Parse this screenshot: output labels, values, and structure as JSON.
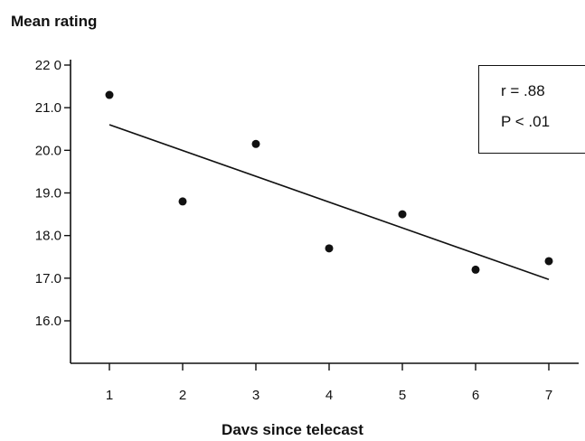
{
  "chart_data": {
    "type": "scatter",
    "title": "",
    "xlabel": "Davs since telecast",
    "ylabel": "Mean rating",
    "xlim": [
      1,
      7
    ],
    "ylim": [
      15,
      22
    ],
    "x_ticks": [
      1,
      2,
      3,
      4,
      5,
      6,
      7
    ],
    "x_tick_labels": [
      "1",
      "2",
      "3",
      "4",
      "5",
      "6",
      "7"
    ],
    "y_ticks": [
      16,
      17,
      18,
      19,
      20,
      21,
      22
    ],
    "y_tick_labels": [
      "16.0",
      "17.0",
      "18.0",
      "19.0",
      "20.0",
      "21.0",
      "22 0"
    ],
    "grid": false,
    "series": [
      {
        "points": [
          {
            "x": 1,
            "y": 21.3
          },
          {
            "x": 2,
            "y": 18.8
          },
          {
            "x": 3,
            "y": 20.15
          },
          {
            "x": 4,
            "y": 17.7
          },
          {
            "x": 5,
            "y": 18.5
          },
          {
            "x": 6,
            "y": 17.2
          },
          {
            "x": 7,
            "y": 17.4
          }
        ]
      }
    ],
    "trendline": {
      "x": [
        1,
        7
      ],
      "y": [
        20.6,
        16.97
      ]
    },
    "annotation": {
      "r_line": "r  = .88",
      "p_line": "P < .01"
    }
  }
}
